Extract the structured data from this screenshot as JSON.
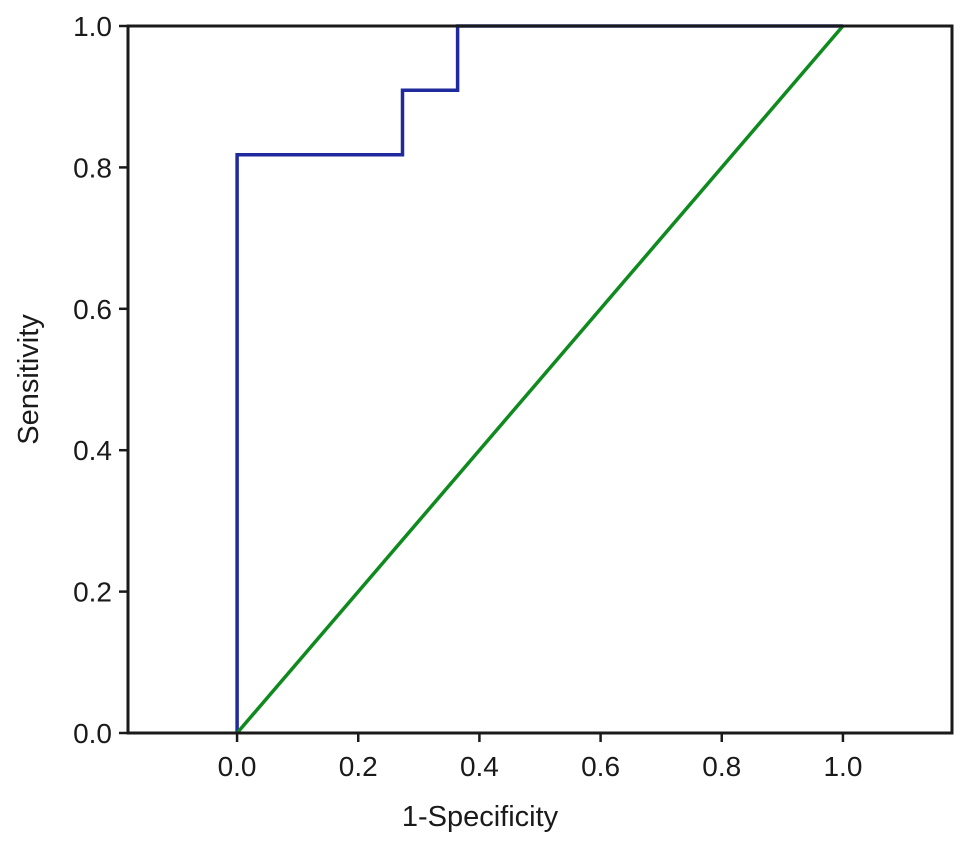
{
  "chart_data": {
    "type": "line",
    "title": "",
    "xlabel": "1-Specificity",
    "ylabel": "Sensitivity",
    "xlim": [
      -0.18,
      1.18
    ],
    "ylim": [
      0.0,
      1.0
    ],
    "x_ticks": [
      0.0,
      0.2,
      0.4,
      0.6,
      0.8,
      1.0
    ],
    "x_tick_labels": [
      "0.0",
      "0.2",
      "0.4",
      "0.6",
      "0.8",
      "1.0"
    ],
    "y_ticks": [
      0.0,
      0.2,
      0.4,
      0.6,
      0.8,
      1.0
    ],
    "y_tick_labels": [
      "0.0",
      "0.2",
      "0.4",
      "0.6",
      "0.8",
      "1.0"
    ],
    "grid": false,
    "legend": "none",
    "series": [
      {
        "color": "#1f2a9c",
        "style": "step",
        "points": [
          [
            0.0,
            0.0
          ],
          [
            0.0,
            0.818
          ],
          [
            0.273,
            0.818
          ],
          [
            0.273,
            0.909
          ],
          [
            0.364,
            0.909
          ],
          [
            0.364,
            1.0
          ],
          [
            1.0,
            1.0
          ]
        ]
      },
      {
        "color": "#0f8a1e",
        "style": "line",
        "points": [
          [
            0.0,
            0.0
          ],
          [
            1.0,
            1.0
          ]
        ]
      }
    ]
  }
}
